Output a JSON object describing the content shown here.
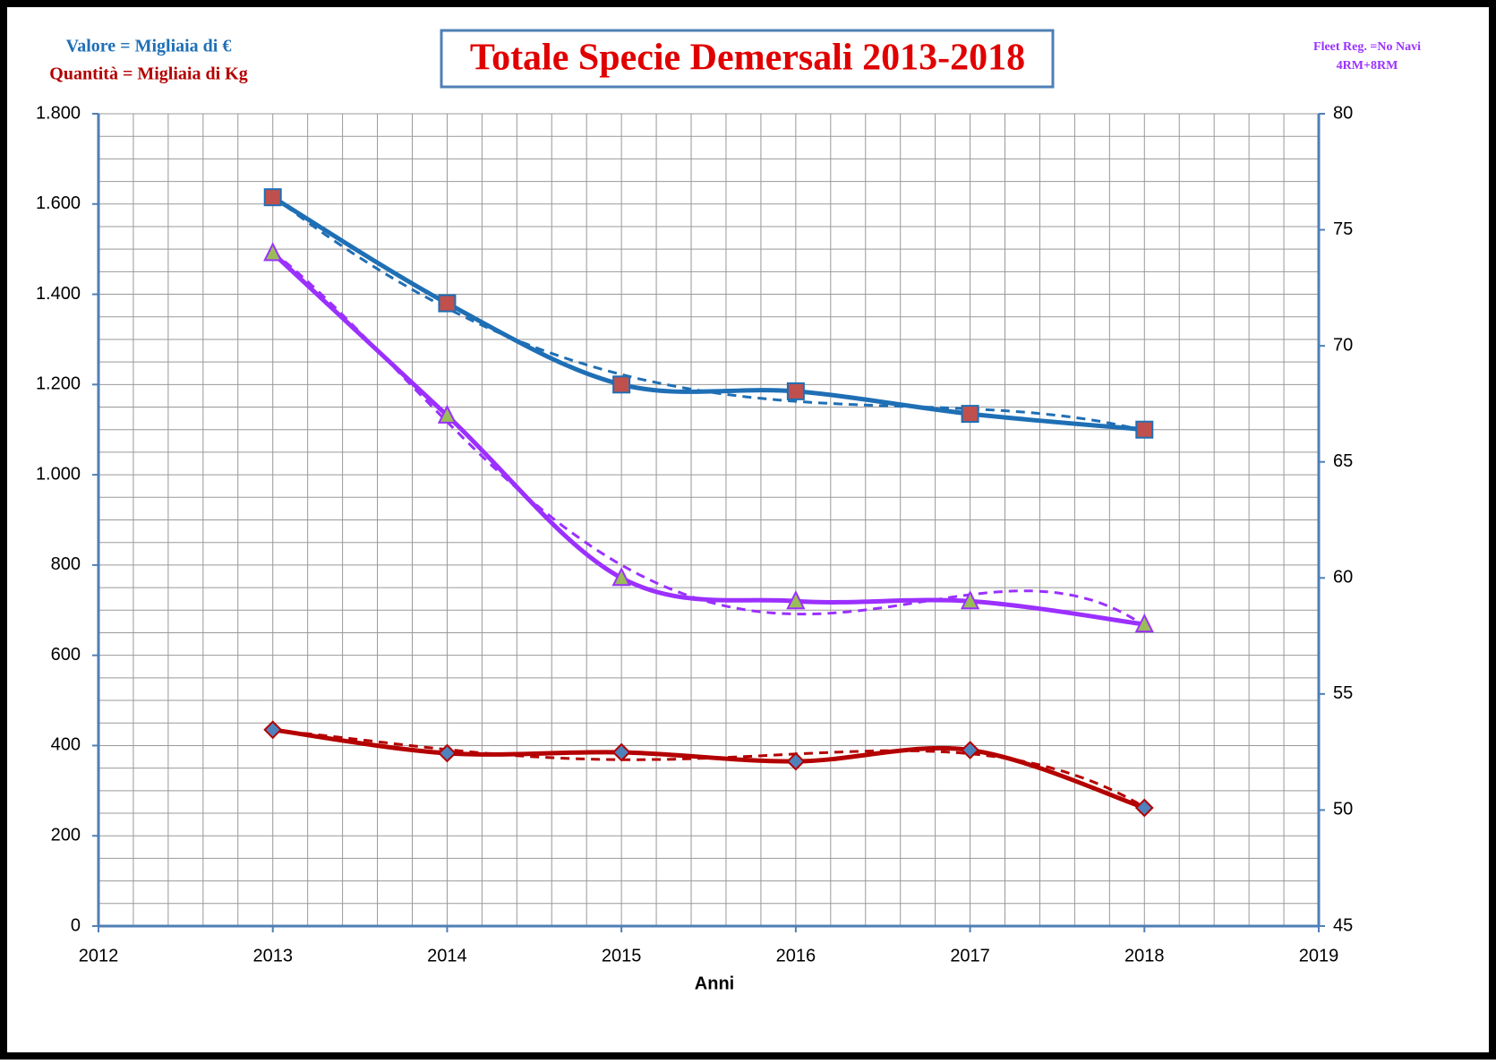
{
  "chart_data": {
    "type": "line",
    "title": "Totale Specie Demersali 2013-2018",
    "x_label": "Anni",
    "x": [
      2013,
      2014,
      2015,
      2016,
      2017,
      2018
    ],
    "xlim": [
      2012,
      2019
    ],
    "xticks": [
      2012,
      2013,
      2014,
      2015,
      2016,
      2017,
      2018,
      2019
    ],
    "ylim": [
      0,
      1800
    ],
    "yticks": [
      0,
      200,
      400,
      600,
      800,
      {
        "value": 1000,
        "label": "1.000"
      },
      {
        "value": 1200,
        "label": "1.200"
      },
      {
        "value": 1400,
        "label": "1.400"
      },
      {
        "value": 1600,
        "label": "1.600"
      },
      {
        "value": 1800,
        "label": "1.800"
      }
    ],
    "y2lim": [
      45,
      80
    ],
    "y2ticks": [
      45,
      50,
      55,
      60,
      65,
      70,
      75,
      80
    ],
    "grid": true,
    "trendline": "polynomial",
    "series": [
      {
        "name": "Valore = Migliaia di €",
        "color": "#1f6fb5",
        "marker": "square",
        "marker_color": "#c0504d",
        "values": [
          1615,
          1380,
          1200,
          1185,
          1135,
          1100
        ]
      },
      {
        "name": "Quantità = Migliaia di Kg",
        "color": "#b40000",
        "marker": "diamond",
        "marker_color": "#4f81bd",
        "values": [
          435,
          383,
          385,
          365,
          390,
          262
        ]
      },
      {
        "name": "Fleet Reg. =No Navi",
        "color": "#9b30ff",
        "marker": "triangle",
        "marker_color": "#9bbb59",
        "axis": "y2",
        "values": [
          74,
          67,
          60,
          59,
          59,
          58
        ]
      }
    ],
    "annotation": "4RM+8RM"
  }
}
